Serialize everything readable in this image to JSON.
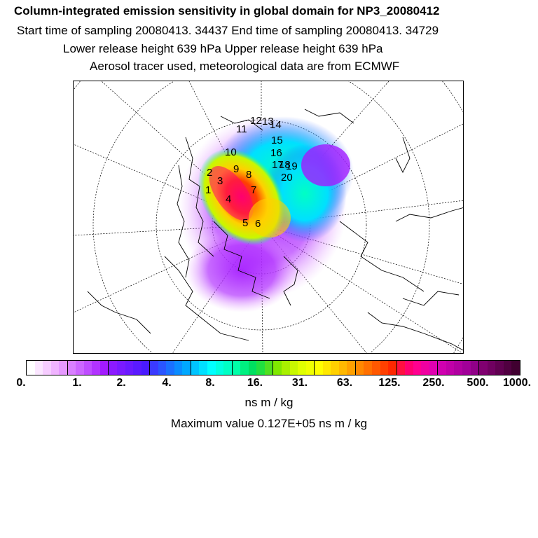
{
  "header": {
    "title": "Column-integrated emission sensitivity in global domain for NP3_20080412",
    "sampling": "Start time of sampling 20080413. 34437     End time of sampling 20080413. 34729",
    "release": "Lower release height  639 hPa        Upper release height  639 hPa",
    "tracer": "Aerosol tracer used, meteorological data are from ECMWF"
  },
  "map": {
    "trajectory_labels": [
      "1",
      "2",
      "3",
      "4",
      "5",
      "6",
      "7",
      "8",
      "9",
      "10",
      "11",
      "12",
      "13",
      "14",
      "15",
      "16",
      "17",
      "18",
      "19",
      "20"
    ]
  },
  "colorbar": {
    "colors": [
      "#ffffff",
      "#fbe6ff",
      "#f6ccff",
      "#f0b3ff",
      "#e699ff",
      "#d980ff",
      "#cc66ff",
      "#bf4dff",
      "#b233ff",
      "#a31aff",
      "#8c1aff",
      "#7a1aff",
      "#6a1aff",
      "#5a1aff",
      "#4a1aff",
      "#3a3aff",
      "#2a55ff",
      "#1a70ff",
      "#0a8cff",
      "#00a8ff",
      "#00c4ff",
      "#00e0ff",
      "#00ffff",
      "#00ffe0",
      "#00ffc4",
      "#00ffa8",
      "#00f080",
      "#00e060",
      "#20e040",
      "#50e020",
      "#80e800",
      "#a8f000",
      "#c8f800",
      "#e0ff00",
      "#f0ff00",
      "#ffff00",
      "#ffe800",
      "#ffd000",
      "#ffb800",
      "#ffa000",
      "#ff8800",
      "#ff7000",
      "#ff5800",
      "#ff4000",
      "#ff2800",
      "#ff1040",
      "#ff0070",
      "#ff0090",
      "#f000a0",
      "#e000b0",
      "#d000b0",
      "#c000a8",
      "#b000a0",
      "#a00098",
      "#900088",
      "#800070",
      "#700060",
      "#600050",
      "#500040",
      "#400030"
    ],
    "ticks": [
      "0.",
      "1.",
      "2.",
      "4.",
      "8.",
      "16.",
      "31.",
      "63.",
      "125.",
      "250.",
      "500.",
      "1000."
    ],
    "units": "ns m / kg",
    "max_value": "Maximum value  0.127E+05 ns m / kg"
  }
}
